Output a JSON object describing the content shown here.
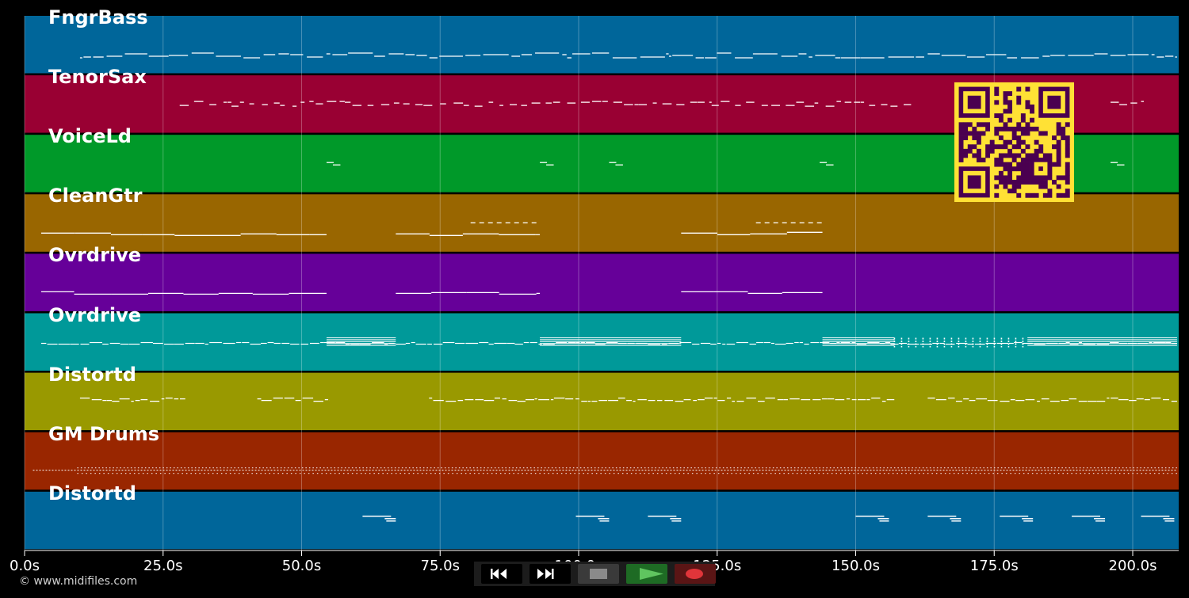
{
  "app": {
    "copyright": "© www.midifiles.com"
  },
  "timeline": {
    "duration_s": 208,
    "ticks": [
      {
        "value": 0,
        "label": "0.0s"
      },
      {
        "value": 25,
        "label": "25.0s"
      },
      {
        "value": 50,
        "label": "50.0s"
      },
      {
        "value": 75,
        "label": "75.0s"
      },
      {
        "value": 100,
        "label": "100.0s"
      },
      {
        "value": 125,
        "label": "125.0s"
      },
      {
        "value": 150,
        "label": "150.0s"
      },
      {
        "value": 175,
        "label": "175.0s"
      },
      {
        "value": 200,
        "label": "200.0s"
      }
    ]
  },
  "tracks": [
    {
      "name": "FngrBass",
      "color": "#00669a",
      "style": "bass",
      "segments": [
        [
          10,
          208
        ]
      ]
    },
    {
      "name": "TenorSax",
      "color": "#990033",
      "style": "sax",
      "segments": [
        [
          28,
          72
        ],
        [
          72,
          124
        ],
        [
          124,
          160
        ],
        [
          196,
          202
        ]
      ]
    },
    {
      "name": "VoiceLd",
      "color": "#009929",
      "style": "voice",
      "segments": [
        [
          54.5,
          57
        ],
        [
          93,
          95.5
        ],
        [
          105.5,
          108
        ],
        [
          143.5,
          146
        ],
        [
          196,
          198.5
        ]
      ]
    },
    {
      "name": "CleanGtr",
      "color": "#996600",
      "style": "pad",
      "segments": [
        [
          3,
          54.5
        ],
        [
          67,
          93
        ],
        [
          118.5,
          144
        ]
      ],
      "extras": [
        [
          80.5,
          92.5
        ],
        [
          132,
          144
        ]
      ]
    },
    {
      "name": "Ovrdrive",
      "color": "#660099",
      "style": "pad",
      "segments": [
        [
          3,
          54.5
        ],
        [
          67,
          93
        ],
        [
          118.5,
          144
        ]
      ]
    },
    {
      "name": "Ovrdrive",
      "color": "#009999",
      "style": "rhythm",
      "segments": [
        [
          3,
          208
        ]
      ],
      "dense": [
        [
          54.5,
          67
        ],
        [
          93,
          118.5
        ],
        [
          144,
          157
        ],
        [
          181,
          208
        ]
      ],
      "ticks": [
        [
          157,
          181
        ]
      ]
    },
    {
      "name": "Distortd",
      "color": "#999900",
      "style": "lead",
      "segments": [
        [
          10,
          29
        ],
        [
          42,
          55
        ],
        [
          73,
          157
        ],
        [
          163,
          208
        ]
      ]
    },
    {
      "name": "GM Drums",
      "color": "#992600",
      "style": "drums",
      "segments": [
        [
          1.5,
          208
        ]
      ]
    },
    {
      "name": "Distortd",
      "color": "#00669a",
      "style": "hits",
      "segments": [
        [
          61,
          67
        ],
        [
          99.5,
          105.5
        ],
        [
          112.5,
          118.5
        ],
        [
          150,
          156
        ],
        [
          163,
          169
        ],
        [
          176,
          182
        ],
        [
          189,
          195
        ],
        [
          201.5,
          207.5
        ]
      ]
    }
  ],
  "transport": {
    "buttons": [
      {
        "id": "rewind",
        "icon": "rewind-icon",
        "bg": "#000000",
        "fg": "#ffffff"
      },
      {
        "id": "forward",
        "icon": "fast-forward-icon",
        "bg": "#000000",
        "fg": "#ffffff"
      },
      {
        "id": "stop",
        "icon": "stop-icon",
        "bg": "#3a3a3a",
        "fg": "#8a8a8a"
      },
      {
        "id": "play",
        "icon": "play-icon",
        "bg": "#1e6b24",
        "fg": "#5fc45f"
      },
      {
        "id": "record",
        "icon": "record-icon",
        "bg": "#5a1515",
        "fg": "#e0353a"
      }
    ]
  },
  "qr_code": {
    "icon": "qr-code-icon",
    "fg": "#4a0050",
    "bg": "#ffe135"
  }
}
